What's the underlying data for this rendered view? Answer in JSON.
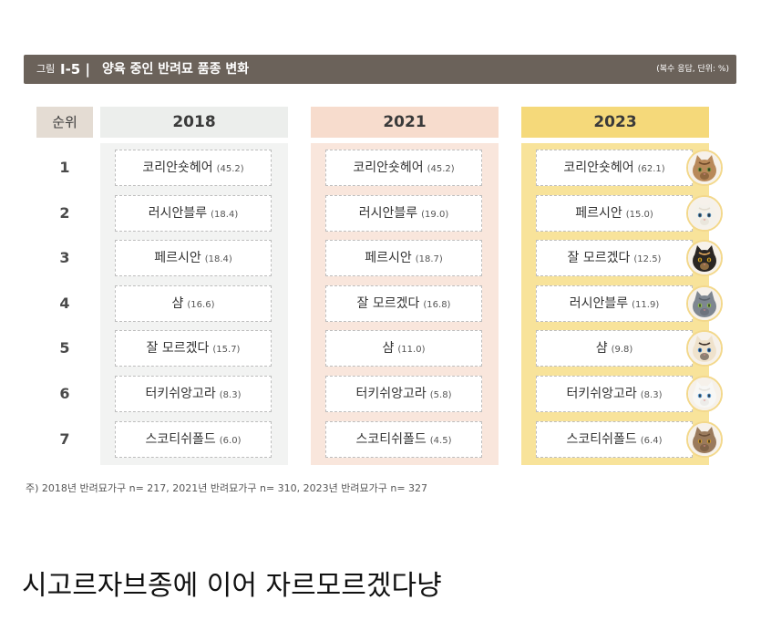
{
  "figure": {
    "label": "그림",
    "number": "I-5 |",
    "title": "양육 중인 반려묘 품종 변화",
    "unit": "(복수 응답, 단위: %)",
    "rank_header": "순위",
    "note": "주) 2018년 반려묘가구 n= 217, 2021년 반려묘가구 n= 310, 2023년 반려묘가구 n= 327"
  },
  "colors": {
    "title_bar": "#6b625a",
    "rank_header_bg": "#e4dcd3",
    "year_2018_header": "#eceeec",
    "year_2018_column": "#f2f3f2",
    "year_2021_header": "#f7dccd",
    "year_2021_column": "#f9e6dc",
    "year_2023_header": "#f5d97a",
    "year_2023_column": "#f8e39a"
  },
  "chart_data": {
    "type": "table",
    "title": "양육 중인 반려묘 품종 변화",
    "unit": "(복수 응답, 단위: %)",
    "ranks": [
      "1",
      "2",
      "3",
      "4",
      "5",
      "6",
      "7"
    ],
    "columns": [
      {
        "year": "2018",
        "rows": [
          {
            "breed": "코리안숏헤어",
            "value": "(45.2)"
          },
          {
            "breed": "러시안블루",
            "value": "(18.4)"
          },
          {
            "breed": "페르시안",
            "value": "(18.4)"
          },
          {
            "breed": "샴",
            "value": "(16.6)"
          },
          {
            "breed": "잘 모르겠다",
            "value": "(15.7)"
          },
          {
            "breed": "터키쉬앙고라",
            "value": "(8.3)"
          },
          {
            "breed": "스코티쉬폴드",
            "value": "(6.0)"
          }
        ]
      },
      {
        "year": "2021",
        "rows": [
          {
            "breed": "코리안숏헤어",
            "value": "(45.2)"
          },
          {
            "breed": "러시안블루",
            "value": "(19.0)"
          },
          {
            "breed": "페르시안",
            "value": "(18.7)"
          },
          {
            "breed": "잘 모르겠다",
            "value": "(16.8)"
          },
          {
            "breed": "샴",
            "value": "(11.0)"
          },
          {
            "breed": "터키쉬앙고라",
            "value": "(5.8)"
          },
          {
            "breed": "스코티쉬폴드",
            "value": "(4.5)"
          }
        ]
      },
      {
        "year": "2023",
        "rows": [
          {
            "breed": "코리안숏헤어",
            "value": "(62.1)"
          },
          {
            "breed": "페르시안",
            "value": "(15.0)"
          },
          {
            "breed": "잘 모르겠다",
            "value": "(12.5)"
          },
          {
            "breed": "러시안블루",
            "value": "(11.9)"
          },
          {
            "breed": "샴",
            "value": "(9.8)"
          },
          {
            "breed": "터키쉬앙고라",
            "value": "(8.3)"
          },
          {
            "breed": "스코티쉬폴드",
            "value": "(6.4)"
          }
        ]
      }
    ]
  },
  "cat_photos": [
    {
      "icon": "korean-shorthair-cat-icon",
      "fur": "#b8895a",
      "stripe": "#6e4a2a",
      "eye": "#6b8e3a"
    },
    {
      "icon": "persian-cat-icon",
      "fur": "#f4f1ea",
      "stripe": "#e2dccf",
      "eye": "#4a7fa8"
    },
    {
      "icon": "unsure-cat-icon",
      "fur": "#2a2623",
      "stripe": "#e2a85c",
      "eye": "#d9a520"
    },
    {
      "icon": "russian-blue-cat-icon",
      "fur": "#7e8690",
      "stripe": "#5e656e",
      "eye": "#8fbf4a"
    },
    {
      "icon": "siamese-cat-icon",
      "fur": "#efe2cc",
      "stripe": "#3b2e28",
      "eye": "#3f7fc2"
    },
    {
      "icon": "turkish-angora-cat-icon",
      "fur": "#f7f7f5",
      "stripe": "#e5e3de",
      "eye": "#5c9bd1"
    },
    {
      "icon": "scottish-fold-cat-icon",
      "fur": "#9a7a5c",
      "stripe": "#6b5039",
      "eye": "#c8952e"
    }
  ],
  "caption": "시고르자브종에 이어 자르모르겠다냥"
}
